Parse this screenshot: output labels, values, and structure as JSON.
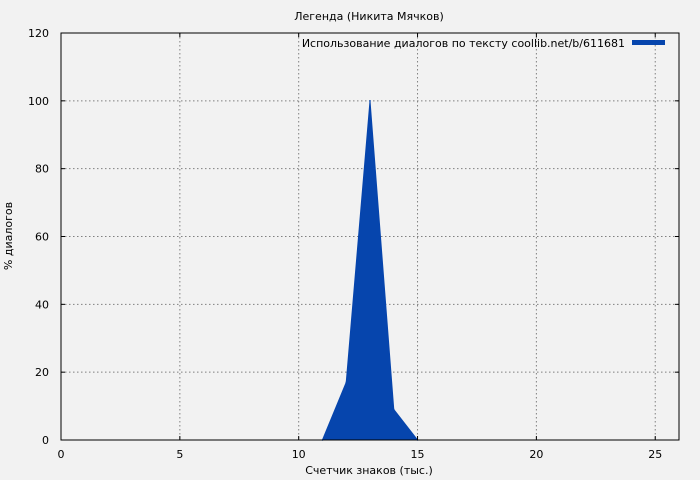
{
  "chart_data": {
    "type": "area",
    "title": "Легенда (Никита Мячков)",
    "xlabel": "Счетчик знаков (тыс.)",
    "ylabel": "% диалогов",
    "xlim": [
      0,
      26
    ],
    "ylim": [
      0,
      120
    ],
    "x_ticks": [
      0,
      5,
      10,
      15,
      20,
      25
    ],
    "y_ticks": [
      0,
      20,
      40,
      60,
      80,
      100,
      120
    ],
    "grid": true,
    "legend_position": "top-right",
    "series": [
      {
        "name": "Использование диалогов по тексту coollib.net/b/611681",
        "color": "#0645ad",
        "x": [
          11,
          12,
          13,
          14,
          15
        ],
        "y": [
          0,
          17,
          100,
          9,
          0
        ]
      }
    ]
  }
}
